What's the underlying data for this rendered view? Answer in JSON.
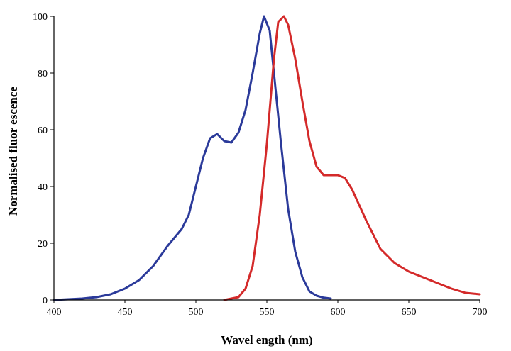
{
  "chart_data": {
    "type": "line",
    "xlabel": "Wavel ength (nm)",
    "ylabel": "Normalised fluor escence",
    "xlim": [
      400,
      700
    ],
    "ylim": [
      0,
      100
    ],
    "xticks": [
      400,
      450,
      500,
      550,
      600,
      650,
      700
    ],
    "yticks": [
      0,
      20,
      40,
      60,
      80,
      100
    ],
    "grid": false,
    "legend": "none",
    "series": [
      {
        "color": "#2b3a9a",
        "x": [
          400,
          420,
          430,
          440,
          450,
          460,
          470,
          480,
          490,
          495,
          500,
          505,
          510,
          515,
          520,
          525,
          530,
          535,
          540,
          545,
          548,
          552,
          555,
          560,
          565,
          570,
          575,
          580,
          585,
          590,
          595
        ],
        "y": [
          0,
          0.5,
          1,
          2,
          4,
          7,
          12,
          19,
          25,
          30,
          40,
          50,
          57,
          58.5,
          56,
          55.5,
          59,
          67,
          80,
          94,
          100,
          95,
          80,
          55,
          32,
          17,
          8,
          3,
          1.5,
          0.8,
          0.5
        ]
      },
      {
        "color": "#d42a2a",
        "x": [
          520,
          530,
          535,
          540,
          545,
          550,
          555,
          558,
          562,
          565,
          570,
          575,
          580,
          585,
          590,
          595,
          600,
          605,
          610,
          620,
          630,
          640,
          650,
          660,
          670,
          680,
          690,
          700
        ],
        "y": [
          0,
          1,
          4,
          12,
          30,
          55,
          85,
          98,
          100,
          97,
          85,
          70,
          56,
          47,
          44,
          44,
          44,
          43,
          39,
          28,
          18,
          13,
          10,
          8,
          6,
          4,
          2.5,
          2
        ]
      }
    ]
  }
}
